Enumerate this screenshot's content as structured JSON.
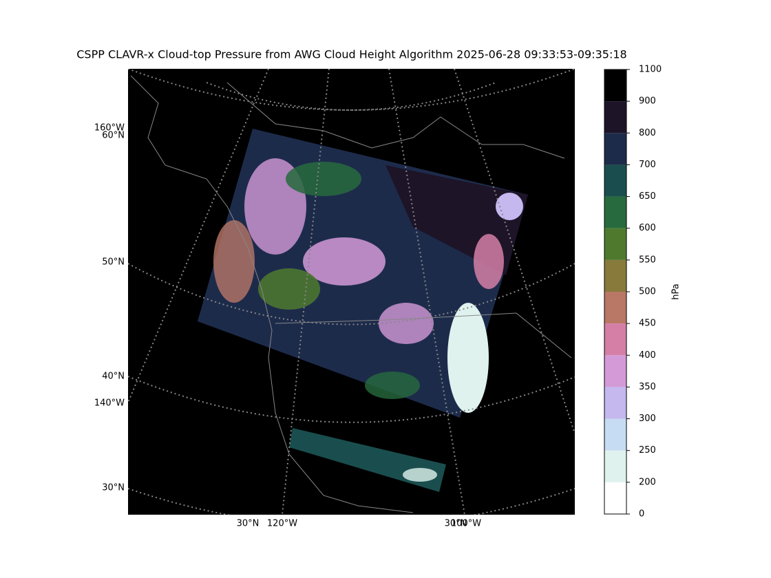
{
  "title": "CSPP CLAVR-x Cloud-top Pressure from AWG Cloud Height Algorithm 2025-06-28 09:33:53-09:35:18",
  "map": {
    "left_labels": [
      "160°W",
      "60°N",
      "50°N",
      "40°N",
      "140°W",
      "30°N"
    ],
    "bottom_labels": [
      "30°N",
      "120°W",
      "30°N",
      "100°W"
    ]
  },
  "colorbar": {
    "label": "hPa",
    "ticks": [
      0,
      200,
      250,
      300,
      350,
      400,
      450,
      500,
      550,
      600,
      650,
      700,
      800,
      900,
      1100
    ],
    "colors": [
      "#ffffff",
      "#dff2ee",
      "#c6dcf2",
      "#c4b8ef",
      "#d49ad8",
      "#d57fa6",
      "#b97766",
      "#877a3a",
      "#4f7a2e",
      "#276a3d",
      "#1a4e4e",
      "#1d2b4b",
      "#1d1428",
      "#000000"
    ]
  }
}
